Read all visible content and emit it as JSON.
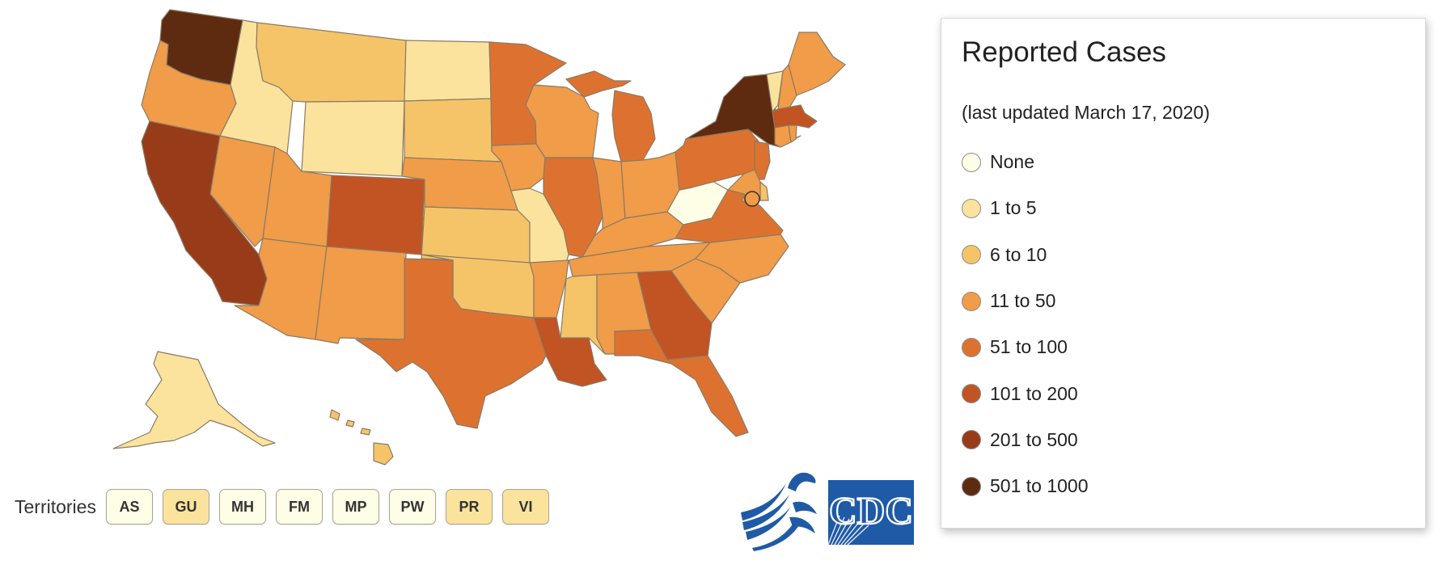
{
  "legend": {
    "title": "Reported Cases",
    "subtitle": "(last updated March 17, 2020)",
    "items": [
      {
        "label": "None",
        "color": "#fefde5"
      },
      {
        "label": "1 to 5",
        "color": "#fbe39e"
      },
      {
        "label": "6 to 10",
        "color": "#f6c468"
      },
      {
        "label": "11 to 50",
        "color": "#f09c48"
      },
      {
        "label": "51 to 100",
        "color": "#dd7230"
      },
      {
        "label": "101 to 200",
        "color": "#c25323"
      },
      {
        "label": "201 to 500",
        "color": "#983b19"
      },
      {
        "label": "501 to 1000",
        "color": "#5e2b10"
      }
    ]
  },
  "territories": {
    "label": "Territories",
    "items": [
      {
        "code": "AS",
        "color": "#fefde5"
      },
      {
        "code": "GU",
        "color": "#fbe39e"
      },
      {
        "code": "MH",
        "color": "#fefde5"
      },
      {
        "code": "FM",
        "color": "#fefde5"
      },
      {
        "code": "MP",
        "color": "#fefde5"
      },
      {
        "code": "PW",
        "color": "#fefde5"
      },
      {
        "code": "PR",
        "color": "#fbe39e"
      },
      {
        "code": "VI",
        "color": "#fbe39e"
      }
    ]
  },
  "logos": {
    "hhs": "hhs-eagle-logo",
    "cdc": "CDC",
    "hhs_color": "#1f5aa6",
    "cdc_color": "#1f5aa6"
  },
  "states": [
    {
      "code": "WA",
      "bin": 7
    },
    {
      "code": "OR",
      "bin": 3
    },
    {
      "code": "CA",
      "bin": 6
    },
    {
      "code": "NV",
      "bin": 3
    },
    {
      "code": "ID",
      "bin": 1
    },
    {
      "code": "MT",
      "bin": 2
    },
    {
      "code": "WY",
      "bin": 1
    },
    {
      "code": "UT",
      "bin": 3
    },
    {
      "code": "AZ",
      "bin": 3
    },
    {
      "code": "CO",
      "bin": 5
    },
    {
      "code": "NM",
      "bin": 3
    },
    {
      "code": "ND",
      "bin": 1
    },
    {
      "code": "SD",
      "bin": 2
    },
    {
      "code": "NE",
      "bin": 3
    },
    {
      "code": "KS",
      "bin": 2
    },
    {
      "code": "OK",
      "bin": 2
    },
    {
      "code": "TX",
      "bin": 4
    },
    {
      "code": "MN",
      "bin": 4
    },
    {
      "code": "IA",
      "bin": 3
    },
    {
      "code": "MO",
      "bin": 1
    },
    {
      "code": "AR",
      "bin": 3
    },
    {
      "code": "LA",
      "bin": 5
    },
    {
      "code": "WI",
      "bin": 3
    },
    {
      "code": "IL",
      "bin": 4
    },
    {
      "code": "MI",
      "bin": 4
    },
    {
      "code": "IN",
      "bin": 3
    },
    {
      "code": "OH",
      "bin": 3
    },
    {
      "code": "KY",
      "bin": 3
    },
    {
      "code": "TN",
      "bin": 3
    },
    {
      "code": "MS",
      "bin": 2
    },
    {
      "code": "AL",
      "bin": 3
    },
    {
      "code": "GA",
      "bin": 5
    },
    {
      "code": "FL",
      "bin": 4
    },
    {
      "code": "SC",
      "bin": 3
    },
    {
      "code": "NC",
      "bin": 3
    },
    {
      "code": "VA",
      "bin": 4
    },
    {
      "code": "WV",
      "bin": 0
    },
    {
      "code": "PA",
      "bin": 4
    },
    {
      "code": "NY",
      "bin": 7
    },
    {
      "code": "NJ",
      "bin": 4
    },
    {
      "code": "DE",
      "bin": 2
    },
    {
      "code": "MD",
      "bin": 3
    },
    {
      "code": "DC",
      "bin": 3
    },
    {
      "code": "VT",
      "bin": 1
    },
    {
      "code": "NH",
      "bin": 3
    },
    {
      "code": "ME",
      "bin": 3
    },
    {
      "code": "MA",
      "bin": 5
    },
    {
      "code": "CT",
      "bin": 3
    },
    {
      "code": "RI",
      "bin": 3
    },
    {
      "code": "AK",
      "bin": 1
    },
    {
      "code": "HI",
      "bin": 2
    }
  ]
}
